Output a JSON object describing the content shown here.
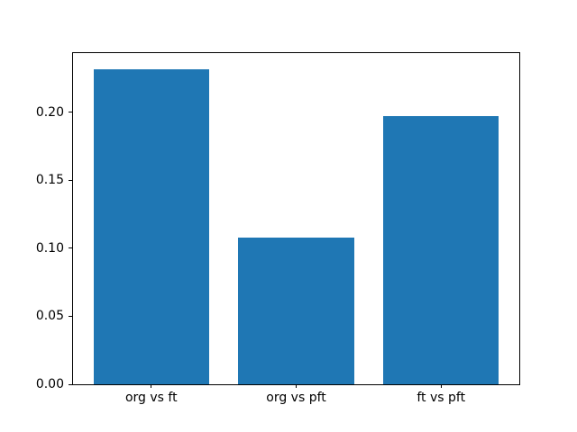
{
  "figure": {
    "background": "#ffffff",
    "spine_color": "#000000"
  },
  "chart_data": {
    "type": "bar",
    "title": "",
    "xlabel": "",
    "ylabel": "",
    "categories": [
      "org vs ft",
      "org vs pft",
      "ft vs pft"
    ],
    "values": [
      0.232,
      0.108,
      0.197
    ],
    "bar_color": "#1f77b4",
    "bar_width": 0.8,
    "xlim": [
      -0.54,
      2.54
    ],
    "ylim": [
      0,
      0.2436
    ],
    "ytick_values": [
      0,
      0.05,
      0.1,
      0.15,
      0.2
    ],
    "ytick_labels": [
      "0.00",
      "0.05",
      "0.10",
      "0.15",
      "0.20"
    ],
    "grid": false,
    "legend_position": "none"
  }
}
